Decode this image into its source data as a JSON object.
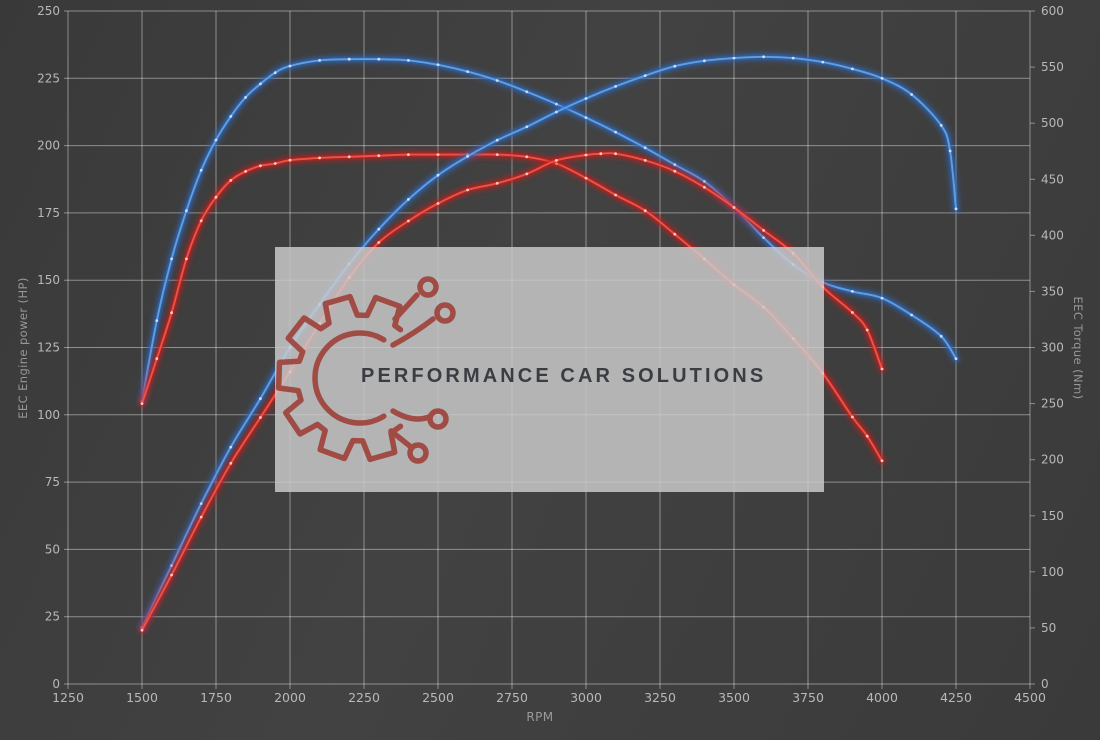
{
  "watermark": {
    "text": "PERFORMANCE CAR SOLUTIONS"
  },
  "colors": {
    "background": "#3d3d3d",
    "grid": "rgba(255,255,255,0.42)",
    "tick_label": "#b8b8b8",
    "axis_title": "#969696",
    "watermark_bg": "#cbcbcb",
    "watermark_text": "#3a3d41",
    "logo_red": "#9e413a",
    "blue_core": "#5e9fe3",
    "blue_glow": "#2e6cc6",
    "red_core": "#ef5244",
    "red_glow": "#cf1f1a"
  },
  "chart_data": {
    "type": "line",
    "title": "",
    "grid": true,
    "legend": false,
    "x_axis": {
      "label": "RPM",
      "min": 1250,
      "max": 4500,
      "step": 250,
      "ticks": [
        "1250",
        "1500",
        "1750",
        "2000",
        "2250",
        "2500",
        "2750",
        "3000",
        "3250",
        "3500",
        "3750",
        "4000",
        "4250",
        "4500"
      ]
    },
    "y_left": {
      "label": "EEC Engine power (HP)",
      "min": 0,
      "max": 250,
      "step": 25,
      "ticks": [
        "0",
        "25",
        "50",
        "75",
        "100",
        "125",
        "150",
        "175",
        "200",
        "225",
        "250"
      ]
    },
    "y_right": {
      "label": "EEC Torque (Nm)",
      "min": 0,
      "max": 600,
      "step": 50,
      "ticks": [
        "0",
        "50",
        "100",
        "150",
        "200",
        "250",
        "300",
        "350",
        "400",
        "450",
        "500",
        "550",
        "600"
      ]
    },
    "series": [
      {
        "name": "torque-blue",
        "axis": "right",
        "unit": "Nm",
        "core": "#5e9fe3",
        "glow": "#2e6cc6",
        "dot": "#d6e8fb",
        "points": [
          [
            1500,
            252
          ],
          [
            1550,
            324
          ],
          [
            1600,
            379
          ],
          [
            1650,
            422
          ],
          [
            1700,
            458
          ],
          [
            1750,
            485
          ],
          [
            1800,
            506
          ],
          [
            1850,
            523
          ],
          [
            1900,
            535
          ],
          [
            1950,
            545
          ],
          [
            2000,
            551
          ],
          [
            2100,
            556
          ],
          [
            2200,
            557
          ],
          [
            2300,
            557
          ],
          [
            2400,
            556
          ],
          [
            2500,
            552
          ],
          [
            2600,
            546
          ],
          [
            2700,
            538
          ],
          [
            2800,
            528
          ],
          [
            2900,
            517
          ],
          [
            3000,
            505
          ],
          [
            3100,
            492
          ],
          [
            3200,
            478
          ],
          [
            3300,
            463
          ],
          [
            3400,
            448
          ],
          [
            3500,
            425
          ],
          [
            3600,
            398
          ],
          [
            3700,
            374
          ],
          [
            3800,
            358
          ],
          [
            3900,
            350
          ],
          [
            4000,
            344
          ],
          [
            4100,
            329
          ],
          [
            4200,
            310
          ],
          [
            4250,
            290
          ]
        ]
      },
      {
        "name": "torque-red",
        "axis": "right",
        "unit": "Nm",
        "core": "#ef5244",
        "glow": "#cf1f1a",
        "dot": "#ffd8cf",
        "points": [
          [
            1500,
            250
          ],
          [
            1550,
            290
          ],
          [
            1600,
            331
          ],
          [
            1650,
            379
          ],
          [
            1700,
            413
          ],
          [
            1750,
            434
          ],
          [
            1800,
            449
          ],
          [
            1850,
            457
          ],
          [
            1900,
            462
          ],
          [
            1950,
            464
          ],
          [
            2000,
            467
          ],
          [
            2100,
            469
          ],
          [
            2200,
            470
          ],
          [
            2300,
            471
          ],
          [
            2400,
            472
          ],
          [
            2500,
            472
          ],
          [
            2600,
            472
          ],
          [
            2700,
            472
          ],
          [
            2800,
            470
          ],
          [
            2900,
            464
          ],
          [
            3000,
            451
          ],
          [
            3100,
            436
          ],
          [
            3200,
            422
          ],
          [
            3300,
            401
          ],
          [
            3400,
            379
          ],
          [
            3500,
            356
          ],
          [
            3600,
            336
          ],
          [
            3700,
            308
          ],
          [
            3800,
            277
          ],
          [
            3900,
            238
          ],
          [
            3950,
            221
          ],
          [
            4000,
            199
          ]
        ]
      },
      {
        "name": "power-blue",
        "axis": "left",
        "unit": "HP",
        "core": "#5e9fe3",
        "glow": "#2e6cc6",
        "dot": "#d6e8fb",
        "points": [
          [
            1500,
            21
          ],
          [
            1600,
            44
          ],
          [
            1700,
            67
          ],
          [
            1800,
            88
          ],
          [
            1900,
            106
          ],
          [
            2000,
            125
          ],
          [
            2100,
            141
          ],
          [
            2200,
            156
          ],
          [
            2300,
            169
          ],
          [
            2400,
            180
          ],
          [
            2500,
            189
          ],
          [
            2600,
            196
          ],
          [
            2700,
            202
          ],
          [
            2800,
            207
          ],
          [
            2900,
            212.5
          ],
          [
            3000,
            217.5
          ],
          [
            3100,
            222
          ],
          [
            3200,
            226
          ],
          [
            3300,
            229.5
          ],
          [
            3400,
            231.5
          ],
          [
            3500,
            232.5
          ],
          [
            3600,
            233
          ],
          [
            3700,
            232.5
          ],
          [
            3800,
            231
          ],
          [
            3900,
            228.5
          ],
          [
            4000,
            225
          ],
          [
            4100,
            219
          ],
          [
            4200,
            207.5
          ],
          [
            4230,
            198
          ],
          [
            4250,
            176.5
          ]
        ]
      },
      {
        "name": "power-red",
        "axis": "left",
        "unit": "HP",
        "core": "#ef5244",
        "glow": "#cf1f1a",
        "dot": "#ffd8cf",
        "points": [
          [
            1500,
            20
          ],
          [
            1600,
            40.5
          ],
          [
            1700,
            62
          ],
          [
            1800,
            82
          ],
          [
            1900,
            99
          ],
          [
            2000,
            116
          ],
          [
            2100,
            134
          ],
          [
            2200,
            151
          ],
          [
            2300,
            164
          ],
          [
            2400,
            172
          ],
          [
            2500,
            178.5
          ],
          [
            2600,
            183.5
          ],
          [
            2700,
            186
          ],
          [
            2800,
            189.5
          ],
          [
            2900,
            194.5
          ],
          [
            3000,
            196.5
          ],
          [
            3050,
            197
          ],
          [
            3100,
            197
          ],
          [
            3200,
            194.5
          ],
          [
            3300,
            190.5
          ],
          [
            3400,
            184.5
          ],
          [
            3500,
            177
          ],
          [
            3600,
            168.5
          ],
          [
            3700,
            160
          ],
          [
            3800,
            147.5
          ],
          [
            3900,
            138
          ],
          [
            3950,
            131.5
          ],
          [
            4000,
            117
          ]
        ]
      }
    ]
  }
}
